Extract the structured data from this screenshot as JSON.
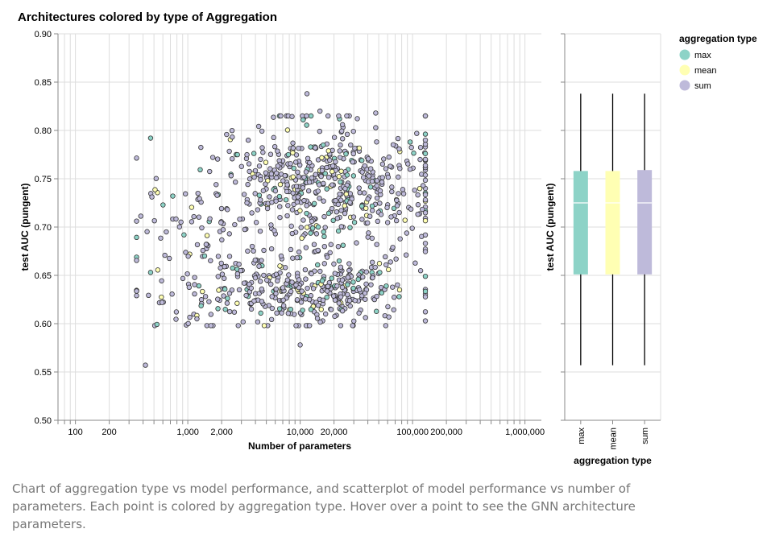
{
  "caption": "Chart of aggregation type vs model performance, and scatterplot of model performance vs number of parameters. Each point is colored by aggregation type. Hover over a point to see the GNN architecture parameters.",
  "colors": {
    "max": "#8dd3c7",
    "mean": "#ffffb3",
    "sum": "#bebada",
    "grid": "#dddddd",
    "axis": "#888888",
    "stroke": "#333333"
  },
  "chart_data": [
    {
      "type": "scatter",
      "title": "Architectures colored by type of Aggregation",
      "xlabel": "Number of parameters",
      "ylabel": "test AUC (pungent)",
      "xscale": "log",
      "xlim": [
        70,
        1400000
      ],
      "ylim": [
        0.5,
        0.9
      ],
      "x_tick_labels": [
        "100",
        "200",
        "1,000",
        "2,000",
        "10,000",
        "20,000",
        "100,000",
        "200,000",
        "1,000,000"
      ],
      "x_ticks": [
        100,
        200,
        1000,
        2000,
        10000,
        20000,
        100000,
        200000,
        1000000
      ],
      "y_ticks": [
        "0.50",
        "0.55",
        "0.60",
        "0.65",
        "0.70",
        "0.75",
        "0.80",
        "0.85",
        "0.90"
      ],
      "y_tick_values": [
        0.5,
        0.55,
        0.6,
        0.65,
        0.7,
        0.75,
        0.8,
        0.85,
        0.9
      ],
      "grid": true,
      "series": [
        {
          "name": "max",
          "count": 130
        },
        {
          "name": "mean",
          "count": 70
        },
        {
          "name": "sum",
          "count": 800
        }
      ],
      "point_distribution": {
        "x_range": [
          350,
          130000
        ],
        "clusters": [
          {
            "x_log10_mean": 4.25,
            "x_log10_sd": 0.55,
            "y_mean": 0.745,
            "y_sd": 0.032,
            "share": 0.55
          },
          {
            "x_log10_mean": 4.05,
            "x_log10_sd": 0.45,
            "y_mean": 0.635,
            "y_sd": 0.02,
            "share": 0.35
          },
          {
            "x_log10_mean": 3.1,
            "x_log10_sd": 0.35,
            "y_mean": 0.665,
            "y_sd": 0.04,
            "share": 0.1
          }
        ],
        "notable_points": [
          [
            420,
            0.557
          ],
          [
            10000,
            0.578
          ],
          [
            11500,
            0.838
          ],
          [
            15000,
            0.82
          ],
          [
            47000,
            0.818
          ],
          [
            130000,
            0.77
          ]
        ]
      }
    },
    {
      "type": "box",
      "xlabel": "aggregation type",
      "ylabel": "test AUC (pungent)",
      "ylim": [
        0.5,
        0.9
      ],
      "grid": true,
      "categories": [
        "max",
        "mean",
        "sum"
      ],
      "boxes": [
        {
          "name": "max",
          "min": 0.557,
          "q1": 0.651,
          "median": 0.725,
          "q3": 0.758,
          "max": 0.838
        },
        {
          "name": "mean",
          "min": 0.557,
          "q1": 0.651,
          "median": 0.725,
          "q3": 0.758,
          "max": 0.838
        },
        {
          "name": "sum",
          "min": 0.557,
          "q1": 0.651,
          "median": 0.725,
          "q3": 0.759,
          "max": 0.838
        }
      ]
    }
  ],
  "legend": {
    "title": "aggregation type",
    "placement": "top-right",
    "items": [
      "max",
      "mean",
      "sum"
    ]
  }
}
